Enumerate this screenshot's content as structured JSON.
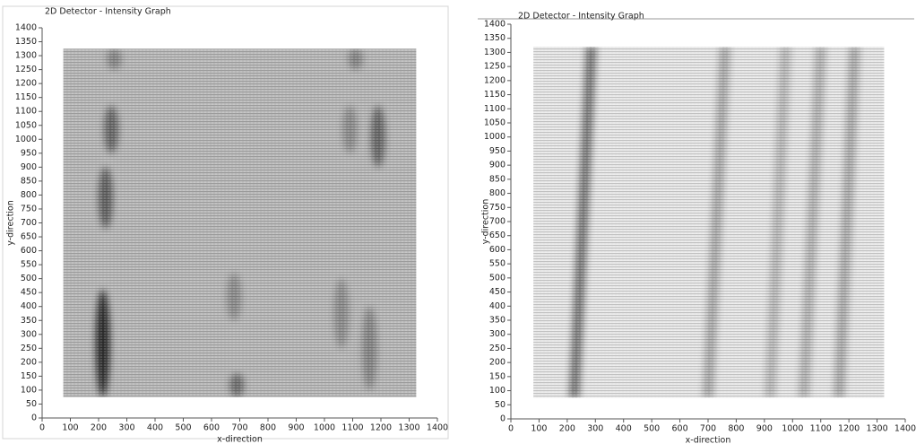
{
  "chart_data": [
    {
      "type": "intensity",
      "title": "2D Detector - Intensity Graph",
      "xlabel": "x-direction",
      "ylabel": "y-direction",
      "xlim": [
        0,
        1400
      ],
      "ylim": [
        0,
        1400
      ],
      "xticks": [
        0,
        100,
        200,
        300,
        400,
        500,
        600,
        700,
        800,
        900,
        1000,
        1100,
        1200,
        1300,
        1400
      ],
      "yticks": [
        0,
        50,
        100,
        150,
        200,
        250,
        300,
        350,
        400,
        450,
        500,
        550,
        600,
        650,
        700,
        750,
        800,
        850,
        900,
        950,
        1000,
        1050,
        1100,
        1150,
        1200,
        1250,
        1300,
        1350,
        1400
      ],
      "extent": {
        "x": [
          75,
          1325
        ],
        "y": [
          75,
          1325
        ]
      },
      "background": "#bdbdbd",
      "blobs": [
        {
          "x": 215,
          "y": [
            75,
            460
          ],
          "intensity": 0.95
        },
        {
          "x": 225,
          "y": [
            680,
            900
          ],
          "intensity": 0.6
        },
        {
          "x": 245,
          "y": [
            950,
            1120
          ],
          "intensity": 0.55
        },
        {
          "x": 255,
          "y": [
            1250,
            1325
          ],
          "intensity": 0.35
        },
        {
          "x": 690,
          "y": [
            75,
            160
          ],
          "intensity": 0.5
        },
        {
          "x": 680,
          "y": [
            350,
            520
          ],
          "intensity": 0.3
        },
        {
          "x": 1060,
          "y": [
            250,
            500
          ],
          "intensity": 0.3
        },
        {
          "x": 1160,
          "y": [
            100,
            400
          ],
          "intensity": 0.35
        },
        {
          "x": 1090,
          "y": [
            950,
            1120
          ],
          "intensity": 0.3
        },
        {
          "x": 1190,
          "y": [
            900,
            1120
          ],
          "intensity": 0.55
        },
        {
          "x": 1110,
          "y": [
            1250,
            1325
          ],
          "intensity": 0.35
        }
      ]
    },
    {
      "type": "stripes",
      "title": "2D Detector - Intensity Graph",
      "xlabel": "x-direction",
      "ylabel": "y-direction",
      "xlim": [
        0,
        1400
      ],
      "ylim": [
        0,
        1400
      ],
      "xticks": [
        0,
        100,
        200,
        300,
        400,
        500,
        600,
        700,
        800,
        900,
        1000,
        1100,
        1200,
        1300,
        1400
      ],
      "yticks": [
        0,
        50,
        100,
        150,
        200,
        250,
        300,
        350,
        400,
        450,
        500,
        550,
        600,
        650,
        700,
        750,
        800,
        850,
        900,
        950,
        1000,
        1050,
        1100,
        1150,
        1200,
        1250,
        1300,
        1350,
        1400
      ],
      "extent": {
        "x": [
          80,
          1325
        ],
        "y": [
          75,
          1320
        ]
      },
      "background": "#ececec",
      "stripes": [
        {
          "x_bottom": 225,
          "x_top": 285,
          "intensity": 0.8
        },
        {
          "x_bottom": 700,
          "x_top": 760,
          "intensity": 0.45
        },
        {
          "x_bottom": 920,
          "x_top": 975,
          "intensity": 0.35
        },
        {
          "x_bottom": 1040,
          "x_top": 1100,
          "intensity": 0.4
        },
        {
          "x_bottom": 1165,
          "x_top": 1220,
          "intensity": 0.45
        }
      ]
    }
  ]
}
